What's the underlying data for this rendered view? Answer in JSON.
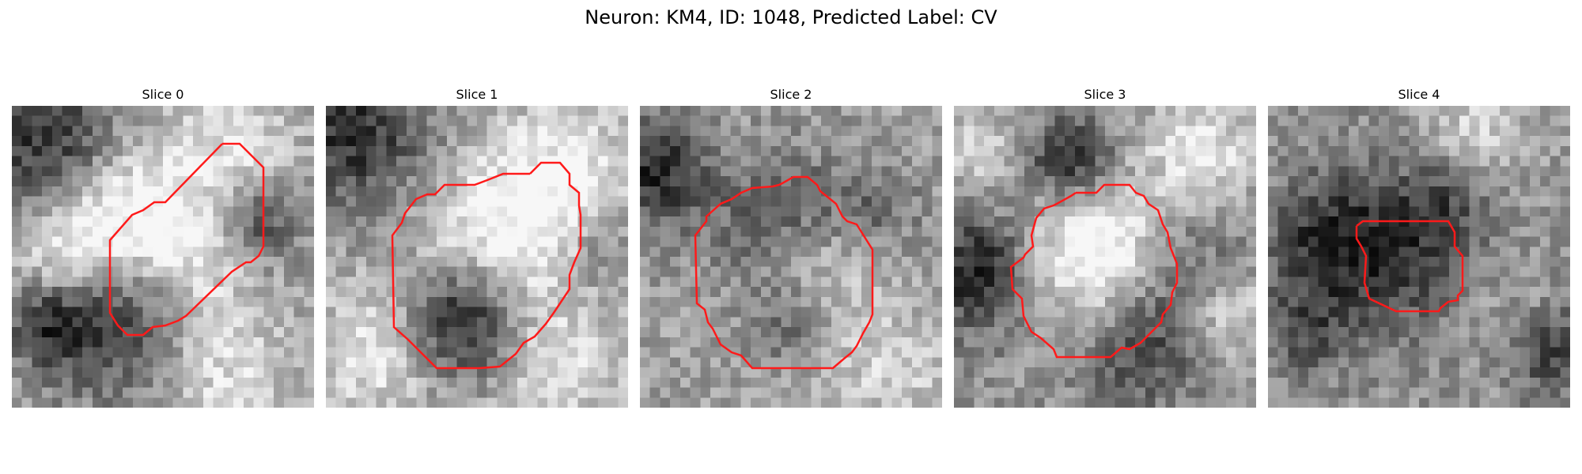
{
  "figure": {
    "title": "Neuron: KM4, ID: 1048, Predicted Label: CV",
    "contour_color": "#ff1a1a",
    "colormap": "grayscale",
    "panels": [
      {
        "title": "Slice 0"
      },
      {
        "title": "Slice 1"
      },
      {
        "title": "Slice 2"
      },
      {
        "title": "Slice 3"
      },
      {
        "title": "Slice 4"
      }
    ]
  }
}
